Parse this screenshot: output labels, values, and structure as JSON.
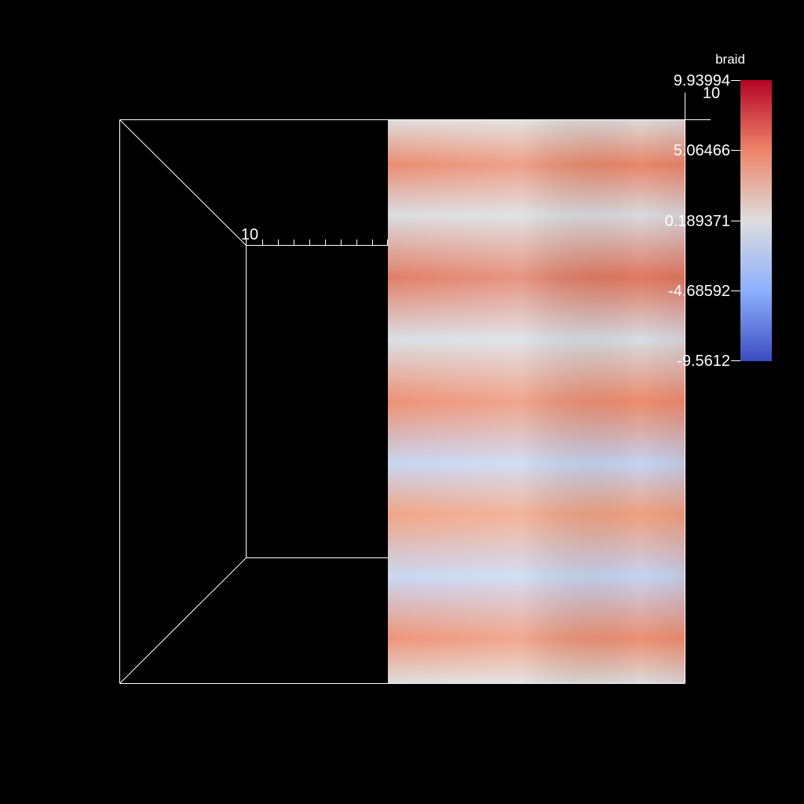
{
  "colorbar": {
    "title": "braid",
    "labels": [
      "9.93994",
      "5.06466",
      "0.189371",
      "-4.68592",
      "-9.5612"
    ],
    "max": 9.93994,
    "min": -9.5612,
    "colormap": "cool-to-warm",
    "colors": {
      "low": "#3b4cc0",
      "mid": "#dddddd",
      "high": "#b40426"
    }
  },
  "axes": {
    "top_right_label": "10",
    "inner_label": "10"
  },
  "scene": {
    "background": "#000000",
    "box_line_color": "#ffffff"
  }
}
